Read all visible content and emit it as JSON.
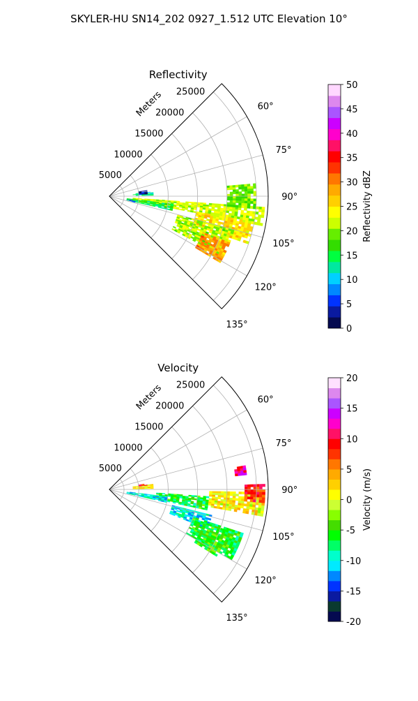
{
  "figure_title": "SKYLER-HU  SN14_202  0927_1.512 UTC Elevation 10°",
  "panels": [
    {
      "title": "Reflectivity",
      "range_axis_label": "Meters",
      "range_ticks": [
        "5000",
        "10000",
        "15000",
        "20000",
        "25000"
      ],
      "azimuth_ticks": [
        "60°",
        "75°",
        "90°",
        "105°",
        "120°",
        "135°"
      ],
      "colorbar_label": "Reflectivity dBZ",
      "colorbar_ticks": [
        "0",
        "5",
        "10",
        "15",
        "20",
        "25",
        "30",
        "35",
        "40",
        "45",
        "50"
      ],
      "colorbar_range": [
        0,
        50
      ]
    },
    {
      "title": "Velocity",
      "range_axis_label": "Meters",
      "range_ticks": [
        "5000",
        "10000",
        "15000",
        "20000",
        "25000"
      ],
      "azimuth_ticks": [
        "60°",
        "75°",
        "90°",
        "105°",
        "120°",
        "135°"
      ],
      "colorbar_label": "Velocity (m/s)",
      "colorbar_ticks": [
        "-20",
        "-15",
        "-10",
        "-5",
        "0",
        "5",
        "10",
        "15",
        "20"
      ],
      "colorbar_range": [
        -20,
        20
      ]
    }
  ],
  "chart_data": [
    {
      "type": "heatmap",
      "title": "Reflectivity",
      "coordinate_system": "polar sector (azimuth vs range)",
      "azimuth_range_deg": [
        45,
        135
      ],
      "range_max_m": 27000,
      "range_ticks_m": [
        5000,
        10000,
        15000,
        20000,
        25000
      ],
      "azimuth_ticks_deg": [
        60,
        75,
        90,
        105,
        120,
        135
      ],
      "value_label": "Reflectivity dBZ",
      "value_range": [
        0,
        50
      ],
      "echo_regions": [
        {
          "az": [
            94,
            101
          ],
          "r": [
            4000,
            26500
          ],
          "value": 22
        },
        {
          "az": [
            97,
            103
          ],
          "r": [
            3000,
            11000
          ],
          "value": 15
        },
        {
          "az": [
            100,
            104
          ],
          "r": [
            3000,
            4500
          ],
          "value": 5
        },
        {
          "az": [
            84,
            89
          ],
          "r": [
            4000,
            7500
          ],
          "value": 13
        },
        {
          "az": [
            81,
            87
          ],
          "r": [
            5000,
            6500
          ],
          "value": 3
        },
        {
          "az": [
            100,
            109
          ],
          "r": [
            15000,
            25000
          ],
          "value": 25
        },
        {
          "az": [
            105,
            118
          ],
          "r": [
            12000,
            22000
          ],
          "value": 21
        },
        {
          "az": [
            111,
            121
          ],
          "r": [
            17000,
            22000
          ],
          "value": 29
        },
        {
          "az": [
            85,
            95
          ],
          "r": [
            20000,
            25000
          ],
          "value": 19
        }
      ]
    },
    {
      "type": "heatmap",
      "title": "Velocity",
      "coordinate_system": "polar sector (azimuth vs range)",
      "azimuth_range_deg": [
        45,
        135
      ],
      "range_max_m": 27000,
      "range_ticks_m": [
        5000,
        10000,
        15000,
        20000,
        25000
      ],
      "azimuth_ticks_deg": [
        60,
        75,
        90,
        105,
        120,
        135
      ],
      "value_label": "Velocity (m/s)",
      "value_range": [
        -20,
        20
      ],
      "echo_regions": [
        {
          "az": [
            94,
            102
          ],
          "r": [
            8000,
            17000
          ],
          "value": -6
        },
        {
          "az": [
            97,
            103
          ],
          "r": [
            3000,
            10000
          ],
          "value": -10
        },
        {
          "az": [
            91,
            100
          ],
          "r": [
            17000,
            26500
          ],
          "value": 1
        },
        {
          "az": [
            88,
            95
          ],
          "r": [
            23000,
            26500
          ],
          "value": 8
        },
        {
          "az": [
            83,
            89
          ],
          "r": [
            4000,
            7500
          ],
          "value": 2
        },
        {
          "az": [
            81,
            84
          ],
          "r": [
            5000,
            6500
          ],
          "value": 9
        },
        {
          "az": [
            80,
            84
          ],
          "r": [
            21500,
            23500
          ],
          "value": 12
        },
        {
          "az": [
            104,
            112
          ],
          "r": [
            11000,
            18000
          ],
          "value": -10
        },
        {
          "az": [
            108,
            120
          ],
          "r": [
            15000,
            24000
          ],
          "value": -6
        },
        {
          "az": [
            112,
            122
          ],
          "r": [
            17000,
            22000
          ],
          "value": -5
        }
      ]
    }
  ],
  "colors": {
    "reflectivity_scale": [
      "#050a50",
      "#0a1aa0",
      "#0033ff",
      "#0088ff",
      "#00d0ff",
      "#00e8a0",
      "#00ff40",
      "#33dd00",
      "#66ee00",
      "#ccff00",
      "#ffff00",
      "#ffd000",
      "#ffaa00",
      "#ff7700",
      "#ff3300",
      "#ff0000",
      "#ff1166",
      "#ff00cc",
      "#cc00ff",
      "#aa55ff",
      "#dd88ee",
      "#ffd8ff"
    ],
    "velocity_scale": [
      "#050a50",
      "#0a3a30",
      "#0a1aa0",
      "#0033ff",
      "#0088ff",
      "#00eaff",
      "#00ffcc",
      "#00ff66",
      "#00ff00",
      "#44dd00",
      "#88ff00",
      "#ccff33",
      "#ffff00",
      "#ffd000",
      "#ffaa00",
      "#ff7700",
      "#ff3300",
      "#ff0000",
      "#ff1166",
      "#ff00cc",
      "#cc00ff",
      "#aa55ff",
      "#dd88ee",
      "#ffe0ff"
    ],
    "grid": "#b0b0b0",
    "frame": "#000000"
  }
}
